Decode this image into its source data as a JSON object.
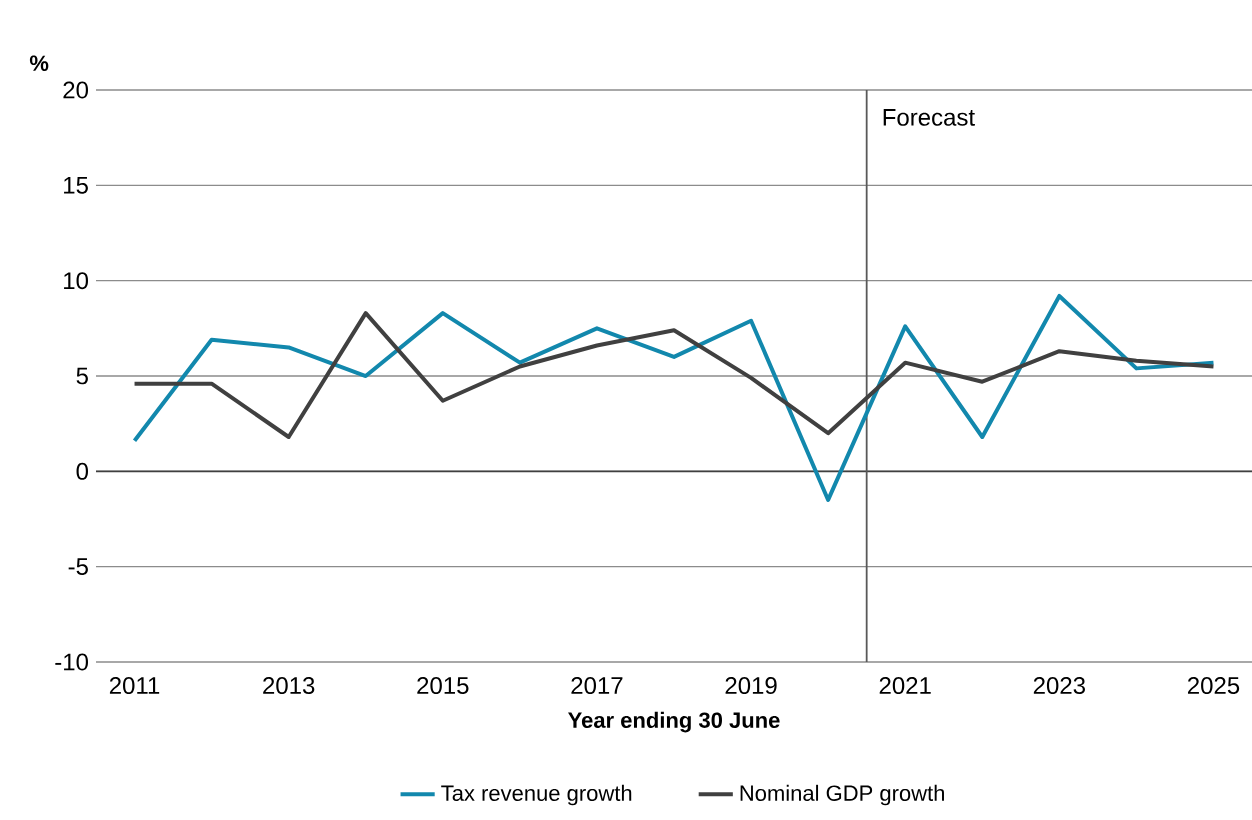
{
  "chart_data": {
    "type": "line",
    "xlabel": "Year ending 30 June",
    "ylabel": "%",
    "x": [
      2011,
      2012,
      2013,
      2014,
      2015,
      2016,
      2017,
      2018,
      2019,
      2020,
      2021,
      2022,
      2023,
      2024,
      2025
    ],
    "series": [
      {
        "name": "Tax revenue growth",
        "color": "#1288ad",
        "values": [
          1.6,
          6.9,
          6.5,
          5.0,
          8.3,
          5.7,
          7.5,
          6.0,
          7.9,
          -1.5,
          7.6,
          1.8,
          9.2,
          5.4,
          5.7
        ]
      },
      {
        "name": "Nominal GDP growth",
        "color": "#404040",
        "values": [
          4.6,
          4.6,
          1.8,
          8.3,
          3.7,
          5.5,
          6.6,
          7.4,
          4.9,
          2.0,
          5.7,
          4.7,
          6.3,
          5.8,
          5.5
        ]
      }
    ],
    "xlim": [
      2010.5,
      2025.5
    ],
    "xticks": [
      2011,
      2013,
      2015,
      2017,
      2019,
      2021,
      2023,
      2025
    ],
    "ylim": [
      -10,
      20
    ],
    "yticks": [
      -10,
      -5,
      0,
      5,
      10,
      15,
      20
    ],
    "ref_lines": [
      {
        "axis": "x",
        "value": 2020.5,
        "label": "Forecast",
        "color": "#595959"
      }
    ],
    "grid": "y",
    "legend": "bottom",
    "line_style": "solid",
    "marker": "none"
  }
}
